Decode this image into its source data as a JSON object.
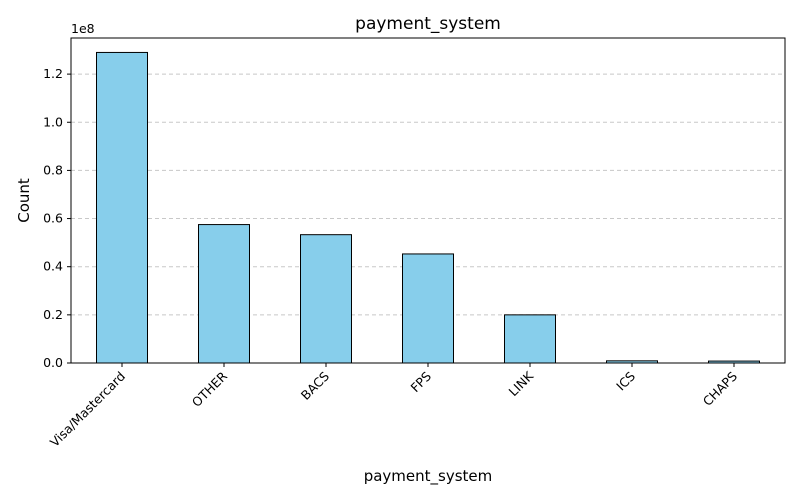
{
  "chart_data": {
    "type": "bar",
    "title": "payment_system",
    "xlabel": "payment_system",
    "ylabel": "Count",
    "y_offset_label": "1e8",
    "categories": [
      "Visa/Mastercard",
      "OTHER",
      "BACS",
      "FPS",
      "LINK",
      "ICS",
      "CHAPS"
    ],
    "values": [
      129000000,
      57500000,
      53300000,
      45300000,
      20000000,
      900000,
      800000
    ],
    "ylim": [
      0,
      135000000
    ],
    "y_ticks": [
      0,
      20000000,
      40000000,
      60000000,
      80000000,
      100000000,
      120000000
    ],
    "y_tick_labels": [
      "0.0",
      "0.2",
      "0.4",
      "0.6",
      "0.8",
      "1.0",
      "1.2"
    ],
    "grid": "horizontal-dashed",
    "colors": {
      "bar_fill": "#87ceeb",
      "bar_edge": "#000000",
      "grid": "#c8c8c8",
      "axis": "#000000"
    }
  }
}
